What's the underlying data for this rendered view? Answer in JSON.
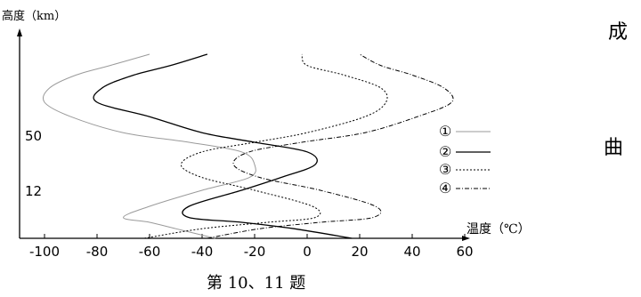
{
  "chart_data": {
    "type": "line",
    "xlabel": "温度（℃）",
    "ylabel": "高度（km）",
    "x_ticks": [
      -100,
      -80,
      -60,
      -40,
      -20,
      0,
      20,
      40,
      60
    ],
    "x_tick_labels": [
      "-100",
      "-80",
      "-60",
      "-40",
      "-20",
      "0",
      "20",
      "40",
      "60"
    ],
    "y_tick_labels": [
      "50",
      "12"
    ],
    "grid": false,
    "legend_position": "right",
    "series": [
      {
        "name": "①",
        "style": "thin-gray",
        "points": [
          [
            -35,
            0
          ],
          [
            -50,
            6
          ],
          [
            -60,
            10
          ],
          [
            -70,
            13
          ],
          [
            -60,
            20
          ],
          [
            -40,
            30
          ],
          [
            -22,
            38
          ],
          [
            -20,
            46
          ],
          [
            -25,
            54
          ],
          [
            -45,
            60
          ],
          [
            -70,
            66
          ],
          [
            -90,
            76
          ],
          [
            -100,
            85
          ],
          [
            -98,
            94
          ],
          [
            -88,
            102
          ],
          [
            -75,
            108
          ],
          [
            -60,
            115
          ]
        ]
      },
      {
        "name": "②",
        "style": "solid",
        "points": [
          [
            17,
            0
          ],
          [
            -5,
            6
          ],
          [
            -25,
            10
          ],
          [
            -45,
            13
          ],
          [
            -45,
            20
          ],
          [
            -25,
            30
          ],
          [
            -10,
            38
          ],
          [
            3,
            46
          ],
          [
            0,
            54
          ],
          [
            -20,
            60
          ],
          [
            -40,
            66
          ],
          [
            -60,
            76
          ],
          [
            -80,
            85
          ],
          [
            -78,
            94
          ],
          [
            -66,
            102
          ],
          [
            -52,
            108
          ],
          [
            -38,
            115
          ]
        ]
      },
      {
        "name": "③",
        "style": "dotted",
        "points": [
          [
            -62,
            0
          ],
          [
            -40,
            6
          ],
          [
            -15,
            10
          ],
          [
            3,
            13
          ],
          [
            2,
            20
          ],
          [
            -20,
            30
          ],
          [
            -40,
            38
          ],
          [
            -48,
            46
          ],
          [
            -40,
            54
          ],
          [
            -20,
            60
          ],
          [
            0,
            66
          ],
          [
            22,
            76
          ],
          [
            30,
            85
          ],
          [
            28,
            94
          ],
          [
            14,
            102
          ],
          [
            0,
            108
          ],
          [
            -2,
            115
          ]
        ]
      },
      {
        "name": "④",
        "style": "dash-dot",
        "points": [
          [
            -38,
            0
          ],
          [
            -18,
            6
          ],
          [
            5,
            10
          ],
          [
            25,
            13
          ],
          [
            26,
            20
          ],
          [
            5,
            30
          ],
          [
            -18,
            38
          ],
          [
            -28,
            46
          ],
          [
            -22,
            54
          ],
          [
            -2,
            60
          ],
          [
            22,
            66
          ],
          [
            42,
            76
          ],
          [
            55,
            85
          ],
          [
            52,
            94
          ],
          [
            40,
            102
          ],
          [
            28,
            108
          ],
          [
            20,
            115
          ]
        ]
      }
    ]
  },
  "side_text": {
    "top": "成",
    "middle": "曲"
  },
  "caption": "第 10、11 题"
}
